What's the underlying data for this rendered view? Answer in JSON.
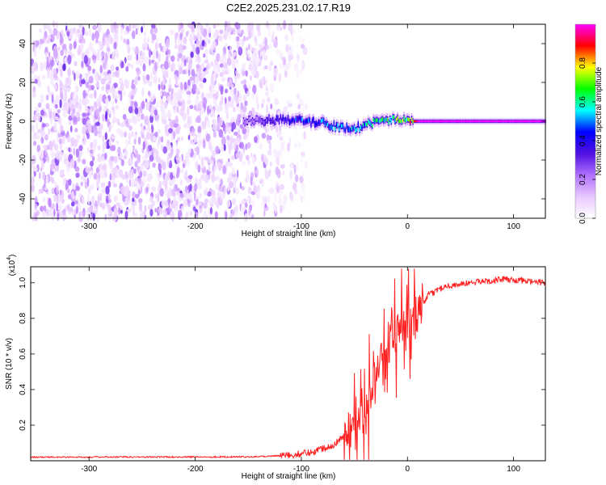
{
  "title": "C2E2.2025.231.02.17.R19",
  "chart_data": [
    {
      "type": "heatmap",
      "xlabel": "Height of straight line (km)",
      "ylabel": "Frequency (Hz)",
      "xlim": [
        -355,
        130
      ],
      "ylim": [
        -50,
        50
      ],
      "xticks": [
        -300,
        -200,
        -100,
        0,
        100
      ],
      "yticks": [
        -40,
        -20,
        0,
        20,
        40
      ],
      "colorbar": {
        "label": "Normalized spectral amplitude",
        "range": [
          0,
          1
        ],
        "ticks": [
          0.0,
          0.2,
          0.4,
          0.6,
          0.8
        ],
        "tick_labels": [
          "0.0",
          "0.2",
          "0.4",
          "0.6",
          "0.8"
        ],
        "colors": [
          "#ffffff",
          "#e8c8ff",
          "#b070ff",
          "#5010e0",
          "#0000ff",
          "#00ffff",
          "#00ff00",
          "#ffff00",
          "#ff0000",
          "#ff00ff"
        ]
      },
      "features": {
        "noise_region_x": [
          -355,
          -110
        ],
        "signal_line": [
          [
            -150,
            0
          ],
          [
            -110,
            1
          ],
          [
            -80,
            -1
          ],
          [
            -60,
            -4
          ],
          [
            -45,
            -3
          ],
          [
            -30,
            0
          ],
          [
            -10,
            1
          ],
          [
            0,
            0
          ],
          [
            130,
            0
          ]
        ],
        "signal_amplitude": [
          [
            -150,
            0.2
          ],
          [
            -100,
            0.45
          ],
          [
            -60,
            0.5
          ],
          [
            -30,
            0.55
          ],
          [
            0,
            0.7
          ],
          [
            10,
            1.0
          ],
          [
            130,
            1.0
          ]
        ]
      }
    },
    {
      "type": "line",
      "xlabel": "Height of straight line (km)",
      "ylabel": "SNR (10 * v/v)",
      "scale_label": "(x10",
      "scale_exp": "4",
      "scale_close": ")",
      "xlim": [
        -355,
        130
      ],
      "ylim": [
        0,
        1.09
      ],
      "xticks": [
        -300,
        -200,
        -100,
        0,
        100
      ],
      "yticks": [
        0.2,
        0.4,
        0.6,
        0.8,
        1.0
      ],
      "ytick_labels": [
        "0.2",
        "0.4",
        "0.6",
        "0.8",
        "1.0"
      ],
      "series": [
        {
          "color": "#ff2020",
          "envelope": [
            [
              -355,
              0.02
            ],
            [
              -150,
              0.022
            ],
            [
              -110,
              0.03
            ],
            [
              -90,
              0.05
            ],
            [
              -70,
              0.09
            ],
            [
              -55,
              0.16
            ],
            [
              -45,
              0.24
            ],
            [
              -35,
              0.35
            ],
            [
              -28,
              0.5
            ],
            [
              -20,
              0.62
            ],
            [
              -10,
              0.72
            ],
            [
              0,
              0.78
            ],
            [
              5,
              0.8
            ],
            [
              12,
              0.86
            ],
            [
              20,
              0.93
            ],
            [
              35,
              0.98
            ],
            [
              60,
              1.0
            ],
            [
              90,
              1.02
            ],
            [
              110,
              1.01
            ],
            [
              130,
              1.0
            ]
          ]
        }
      ]
    }
  ]
}
